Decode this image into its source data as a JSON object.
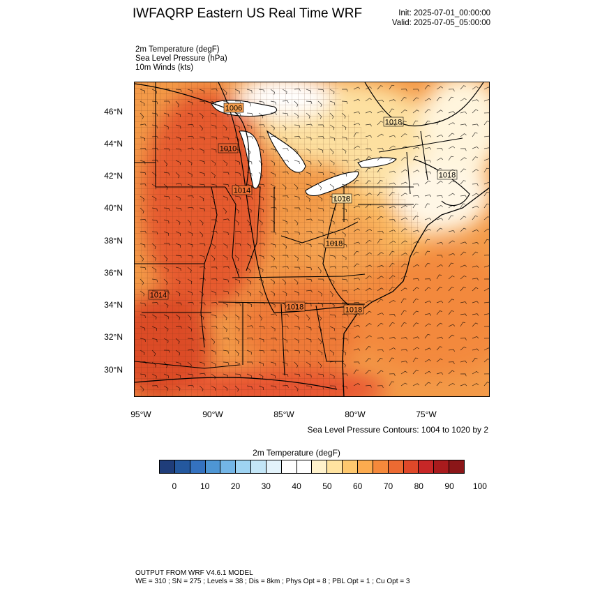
{
  "title": "IWFAQRP Eastern US Real Time WRF",
  "init": "Init: 2025-07-01_00:00:00",
  "valid": "Valid: 2025-07-05_05:00:00",
  "fields": [
    "2m Temperature   (degF)",
    "Sea Level Pressure   (hPa)",
    "10m Winds   (kts)"
  ],
  "lat_labels": [
    "46°N",
    "44°N",
    "42°N",
    "40°N",
    "38°N",
    "36°N",
    "34°N",
    "32°N",
    "30°N"
  ],
  "lon_labels": [
    "95°W",
    "90°W",
    "85°W",
    "80°W",
    "75°W"
  ],
  "pressure_labels": [
    "1006",
    "1010",
    "1014",
    "1018",
    "1018",
    "1018",
    "1018",
    "1014",
    "1018",
    "1018"
  ],
  "contour_note": "Sea Level Pressure Contours: 1004 to 1020 by 2",
  "colorbar": {
    "title": "2m Temperature  (degF)",
    "colors": [
      "#1f3d7a",
      "#24589e",
      "#3472c0",
      "#4e96d4",
      "#73b5e6",
      "#9ed3f2",
      "#c3e6f7",
      "#e3f3fb",
      "#ffffff",
      "#ffffff",
      "#fff2cc",
      "#ffe3a0",
      "#fec86e",
      "#fcab4f",
      "#f5893b",
      "#ec6a32",
      "#df4829",
      "#c72727",
      "#a91b1d",
      "#8b1618"
    ],
    "tick_labels": [
      "0",
      "10",
      "20",
      "30",
      "40",
      "50",
      "60",
      "70",
      "80",
      "90",
      "100"
    ]
  },
  "footer": {
    "line1": "OUTPUT FROM WRF V4.6.1 MODEL",
    "line2": "WE = 310 ; SN = 275 ; Levels = 38 ; Dis = 8km ; Phys Opt = 8 ; PBL Opt = 1 ; Cu Opt = 3"
  }
}
